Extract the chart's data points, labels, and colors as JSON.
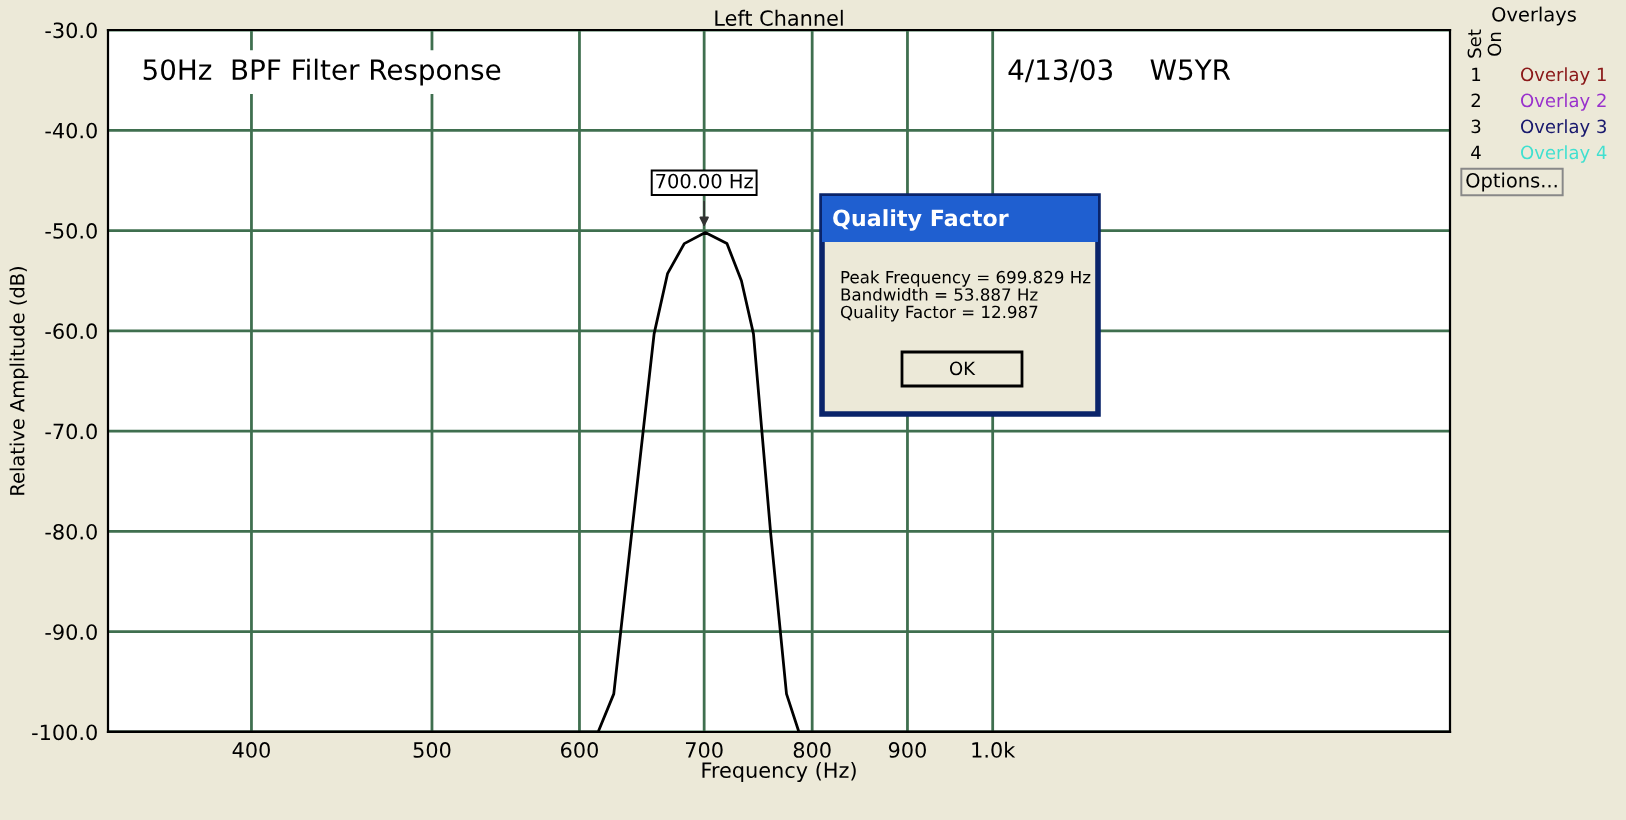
{
  "chart_data": {
    "type": "line",
    "title": "Left Channel",
    "subtitle": "50Hz  BPF Filter Response",
    "xlabel": "Frequency (Hz)",
    "ylabel": "Relative Amplitude (dB)",
    "log": "x",
    "x": [
      335,
      614,
      626,
      640,
      658,
      669,
      683,
      701,
      720,
      733,
      744,
      760,
      775,
      787,
      1760
    ],
    "series": [
      {
        "color": "#000000",
        "values": [
          -100,
          -100,
          -96.2,
          -80.2,
          -60.3,
          -54.3,
          -51.3,
          -50.2,
          -51.3,
          -55.0,
          -60.3,
          -80.2,
          -96.2,
          -100,
          -100
        ]
      }
    ],
    "xlim": [
      335,
      1760
    ],
    "ylim": [
      -100,
      -30
    ],
    "xticks": [
      400,
      500,
      600,
      700,
      800,
      900,
      {
        "value": 1000,
        "label": "1.0k"
      }
    ],
    "yticks": [
      {
        "value": -100,
        "label": "-100.0"
      },
      {
        "value": -90,
        "label": "-90.0"
      },
      {
        "value": -80,
        "label": "-80.0"
      },
      {
        "value": -70,
        "label": "-70.0"
      },
      {
        "value": -60,
        "label": "-60.0"
      },
      {
        "value": -50,
        "label": "-50.0"
      },
      {
        "value": -40,
        "label": "-40.0"
      },
      {
        "value": -30,
        "label": "-30.0"
      }
    ],
    "grid": true,
    "marker": "none",
    "line_style": "solid",
    "legend": false,
    "annotations": [
      {
        "text": "700.00 Hz",
        "x": 700,
        "y": -50.2
      },
      "4/13/03    W5YR",
      "Quality Factor",
      "Peak Frequency = 699.829 Hz\nBandwidth = 53.887 Hz\nQuality Factor = 12.987",
      "OK",
      "Overlays",
      "Set",
      "On",
      "1",
      "2",
      "3",
      "4",
      "Overlay 1",
      "Overlay 2",
      "Overlay 3",
      "Overlay 4",
      "Options..."
    ]
  }
}
